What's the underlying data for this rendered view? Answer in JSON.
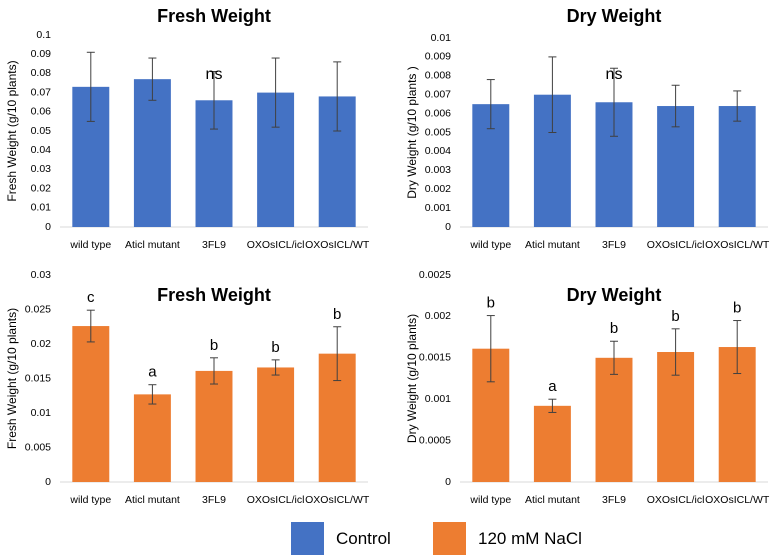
{
  "colors": {
    "control": "#4472C4",
    "nacl": "#ED7D31",
    "axis": "#D9D9D9",
    "text": "#000000"
  },
  "legend": {
    "control_label": "Control",
    "nacl_label": "120 mM NaCl"
  },
  "chart_data": [
    {
      "id": "top-left",
      "type": "bar",
      "title": "Fresh Weight",
      "ylabel": "Fresh Weight (g/10 plants)",
      "xlabel": "",
      "series_color": "control",
      "categories": [
        "wild type",
        "Aticl mutant",
        "3FL9",
        "OXOsICL/icl",
        "OXOsICL/WT"
      ],
      "values": [
        0.073,
        0.077,
        0.066,
        0.07,
        0.068
      ],
      "errors": [
        0.018,
        0.011,
        0.015,
        0.018,
        0.018
      ],
      "letters": [],
      "annotation": "ns",
      "ylim": [
        0,
        0.1
      ],
      "yticks": [
        "0",
        "0.01",
        "0.02",
        "0.03",
        "0.04",
        "0.05",
        "0.06",
        "0.07",
        "0.08",
        "0.09",
        "0.1"
      ]
    },
    {
      "id": "top-right",
      "type": "bar",
      "title": "Dry Weight",
      "ylabel": "Dry Weight  (g/10 plants )",
      "xlabel": "",
      "series_color": "control",
      "categories": [
        "wild type",
        "Aticl mutant",
        "3FL9",
        "OXOsICL/icl",
        "OXOsICL/WT"
      ],
      "values": [
        0.0065,
        0.007,
        0.0066,
        0.0064,
        0.0064
      ],
      "errors": [
        0.0013,
        0.002,
        0.0018,
        0.0011,
        0.0008
      ],
      "letters": [],
      "annotation": "ns",
      "ylim": [
        0,
        0.01
      ],
      "yticks": [
        "0",
        "0.001",
        "0.002",
        "0.003",
        "0.004",
        "0.005",
        "0.006",
        "0.007",
        "0.008",
        "0.009",
        "0.01"
      ]
    },
    {
      "id": "bottom-left",
      "type": "bar",
      "title": "Fresh Weight",
      "ylabel": "Fresh Weight (g/10 plants)",
      "xlabel": "",
      "series_color": "nacl",
      "categories": [
        "wild type",
        "Aticl mutant",
        "3FL9",
        "OXOsICL/icl",
        "OXOsICL/WT"
      ],
      "values": [
        0.0226,
        0.0127,
        0.0161,
        0.0166,
        0.0186
      ],
      "errors": [
        0.0023,
        0.0014,
        0.0019,
        0.0011,
        0.0039
      ],
      "letters": [
        "c",
        "a",
        "b",
        "b",
        "b"
      ],
      "annotation": "",
      "ylim": [
        0,
        0.03
      ],
      "yticks": [
        "0",
        "0.005",
        "0.01",
        "0.015",
        "0.02",
        "0.025",
        "0.03"
      ]
    },
    {
      "id": "bottom-right",
      "type": "bar",
      "title": "Dry Weight",
      "ylabel": "Dry Weight (g/10 plants)",
      "xlabel": "",
      "series_color": "nacl",
      "categories": [
        "wild type",
        "Aticl mutant",
        "3FL9",
        "OXOsICL/icl",
        "OXOsICL/WT"
      ],
      "values": [
        0.00161,
        0.00092,
        0.0015,
        0.00157,
        0.00163
      ],
      "errors": [
        0.0004,
        8e-05,
        0.0002,
        0.00028,
        0.00032
      ],
      "letters": [
        "b",
        "a",
        "b",
        "b",
        "b"
      ],
      "annotation": "",
      "ylim": [
        0,
        0.0025
      ],
      "yticks": [
        "0",
        "0.0005",
        "0.001",
        "0.0015",
        "0.002",
        "0.0025"
      ]
    }
  ]
}
